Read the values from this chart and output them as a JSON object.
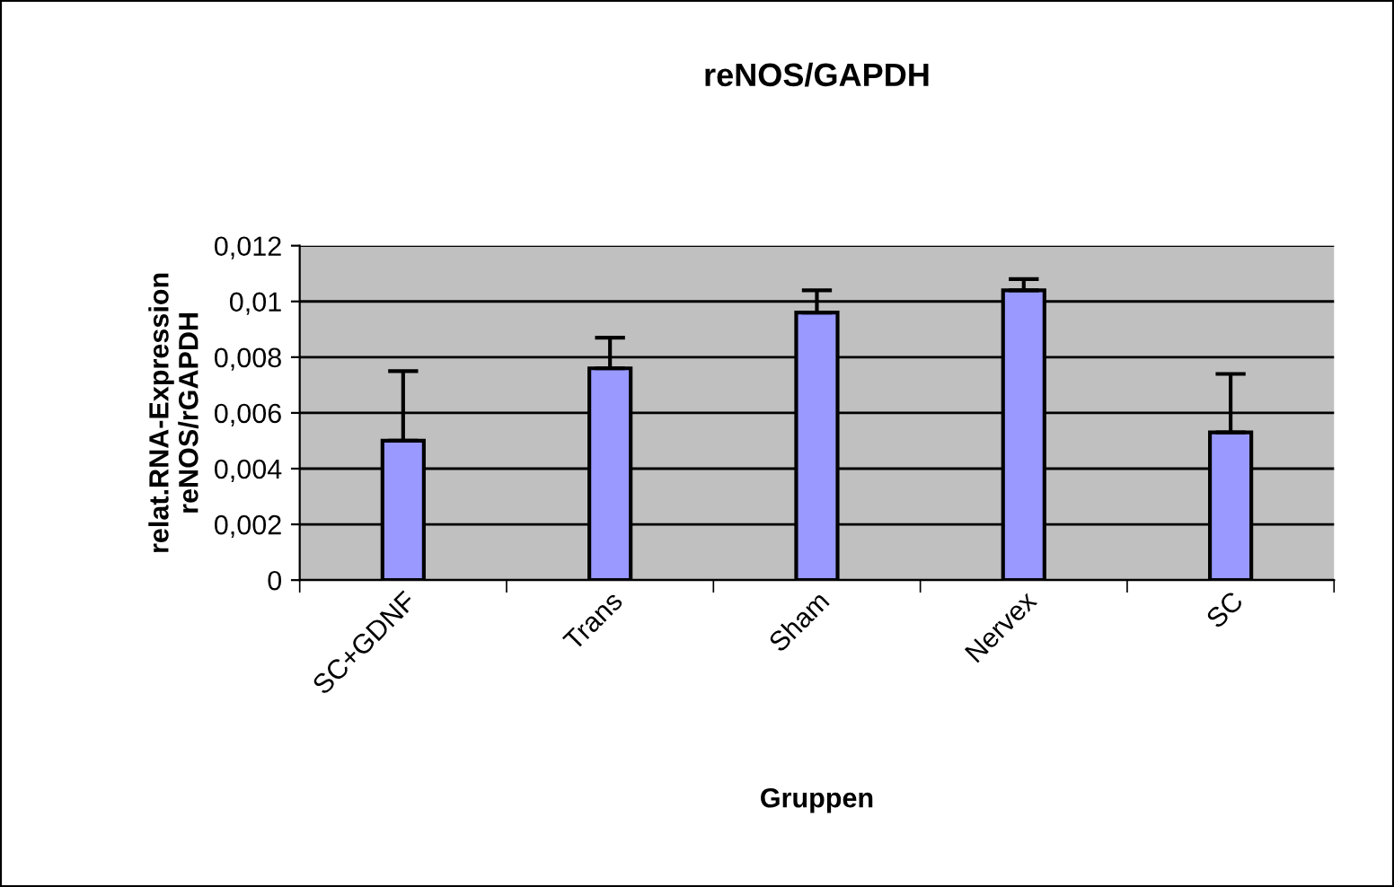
{
  "chart_data": {
    "type": "bar",
    "title": "reNOS/GAPDH",
    "xlabel": "Gruppen",
    "ylabel": "relat.RNA-Expression\nreNOS/rGAPDH",
    "categories": [
      "SC+GDNF",
      "Trans",
      "Sham",
      "Nervex",
      "SC"
    ],
    "values": [
      0.005,
      0.0076,
      0.0096,
      0.0104,
      0.0053
    ],
    "errors": [
      [
        0.005,
        0.0075
      ],
      [
        0.0076,
        0.0087
      ],
      [
        0.0096,
        0.0104
      ],
      [
        0.0104,
        0.0108
      ],
      [
        0.0053,
        0.0074
      ]
    ],
    "color": "#9999ff",
    "ylim": [
      0,
      0.012
    ],
    "yticks": [
      0,
      {
        "value": 0.002,
        "label": "0,002"
      },
      {
        "value": 0.004,
        "label": "0,004"
      },
      {
        "value": 0.006,
        "label": "0,006"
      },
      {
        "value": 0.008,
        "label": "0,008"
      },
      {
        "value": 0.01,
        "label": "0,01"
      },
      {
        "value": 0.012,
        "label": "0,012"
      }
    ],
    "grid": "y"
  }
}
